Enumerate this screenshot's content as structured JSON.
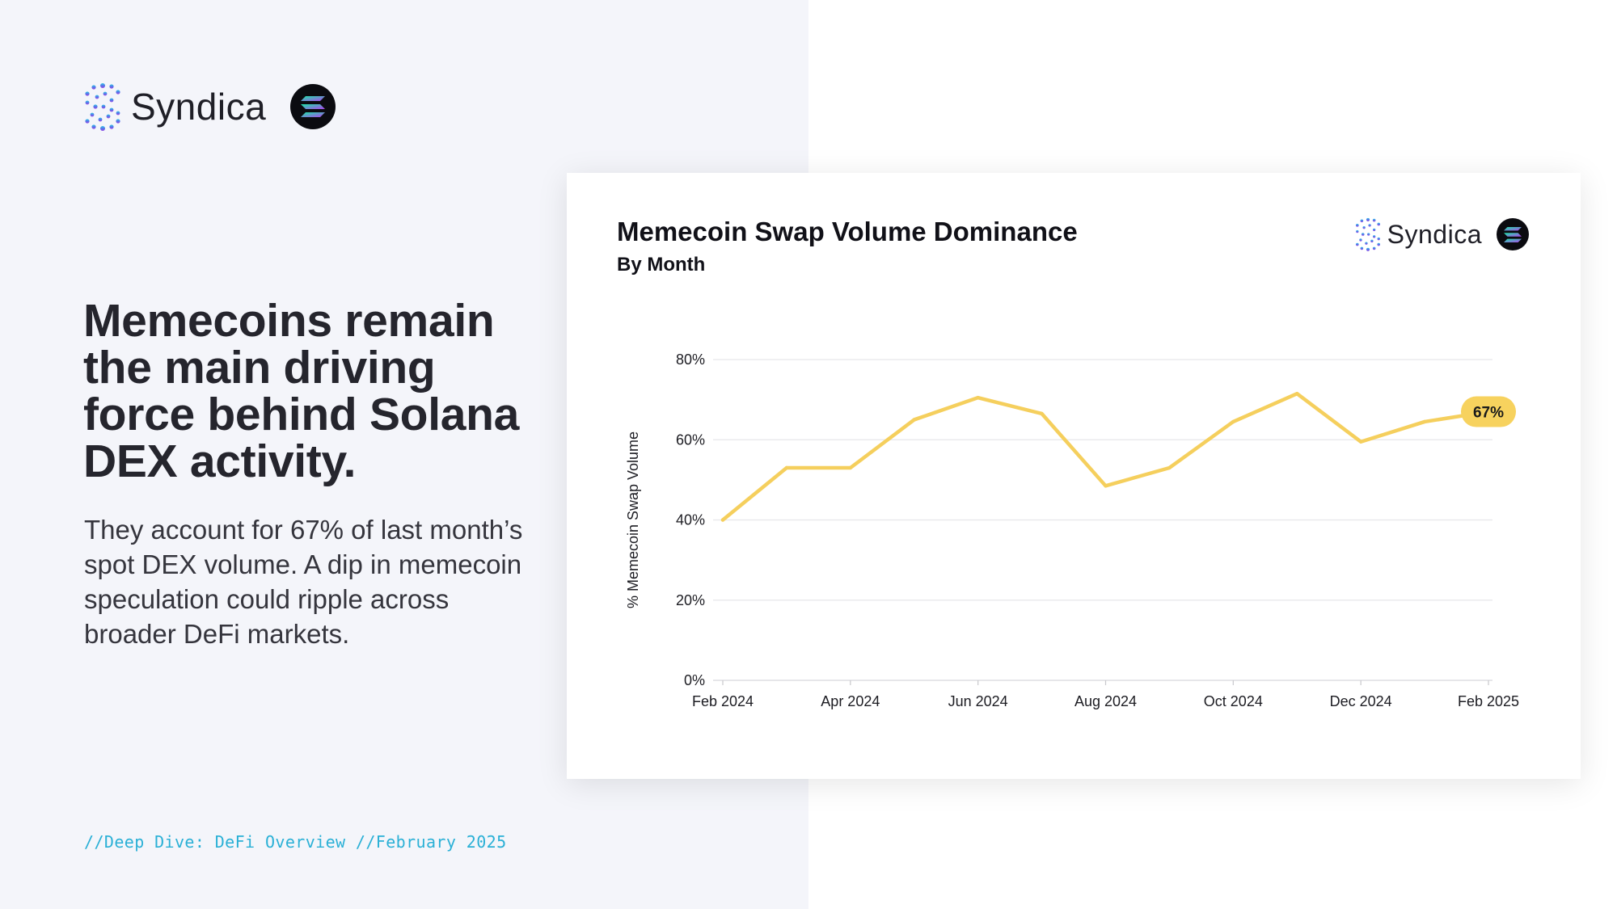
{
  "brand": {
    "name": "Syndica"
  },
  "headline": "Memecoins remain the main driving force behind Solana DEX activity.",
  "subtext": "They account for 67% of last month’s spot DEX volume. A dip in memecoin speculation could ripple across broader DeFi markets.",
  "footer": "//Deep Dive: DeFi Overview //February 2025",
  "colors": {
    "line": "#f5cf5d",
    "badge": "#f7d25e",
    "grid": "#e6e6ea",
    "accent": "#2ab0d6"
  },
  "chart_data": {
    "type": "line",
    "title": "Memecoin Swap Volume Dominance",
    "subtitle": "By Month",
    "ylabel": "% Memecoin Swap Volume",
    "xlabel": "",
    "ylim": [
      0,
      80
    ],
    "yticks": [
      "0%",
      "20%",
      "40%",
      "60%",
      "80%"
    ],
    "ytick_values": [
      0,
      20,
      40,
      60,
      80
    ],
    "x": [
      "2024-02",
      "2024-03",
      "2024-04",
      "2024-05",
      "2024-06",
      "2024-07",
      "2024-08",
      "2024-09",
      "2024-10",
      "2024-11",
      "2024-12",
      "2025-01",
      "2025-02"
    ],
    "xticks": [
      "Feb 2024",
      "Apr 2024",
      "Jun 2024",
      "Aug 2024",
      "Oct 2024",
      "Dec 2024",
      "Feb 2025"
    ],
    "series": [
      {
        "values": [
          40,
          53,
          53,
          65,
          70.5,
          66.5,
          48.5,
          53,
          64.5,
          71.5,
          59.5,
          64.5,
          67
        ]
      }
    ],
    "annotation": {
      "text": "67%"
    },
    "grid": true,
    "legend": "none"
  }
}
